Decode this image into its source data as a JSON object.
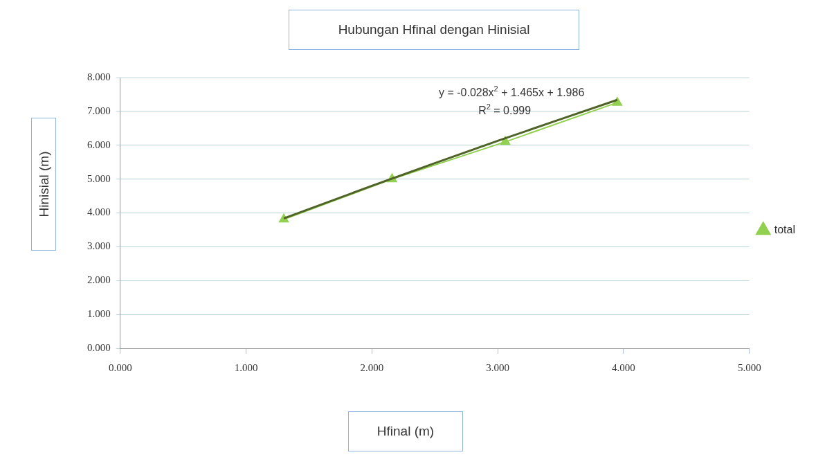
{
  "chart_data": {
    "type": "line",
    "title": "Hubungan Hfinal dengan Hinisial",
    "xlabel": "Hfinal (m)",
    "ylabel": "Hinisial (m)",
    "x": [
      1.3,
      2.16,
      3.06,
      3.95
    ],
    "series": [
      {
        "name": "total",
        "color": "#92d050",
        "values": [
          3.81,
          5.0,
          6.1,
          7.26
        ],
        "marker": "triangle"
      },
      {
        "type": "line",
        "color": "#4f6228",
        "x": [
          1.3,
          2.0,
          2.5,
          3.0,
          3.5,
          3.95
        ],
        "values": [
          3.84,
          4.8,
          5.47,
          6.13,
          6.77,
          7.34
        ],
        "marker": "none"
      }
    ],
    "xlim": [
      0,
      5
    ],
    "xticks": [
      {
        "value": 0,
        "label": "0.000"
      },
      {
        "value": 1,
        "label": "1.000"
      },
      {
        "value": 2,
        "label": "2.000"
      },
      {
        "value": 3,
        "label": "3.000"
      },
      {
        "value": 4,
        "label": "4.000"
      },
      {
        "value": 5,
        "label": "5.000"
      }
    ],
    "ylim": [
      0,
      8
    ],
    "yticks": [
      {
        "value": 0,
        "label": "0.000"
      },
      {
        "value": 1,
        "label": "1.000"
      },
      {
        "value": 2,
        "label": "2.000"
      },
      {
        "value": 3,
        "label": "3.000"
      },
      {
        "value": 4,
        "label": "4.000"
      },
      {
        "value": 5,
        "label": "5.000"
      },
      {
        "value": 6,
        "label": "6.000"
      },
      {
        "value": 7,
        "label": "7.000"
      },
      {
        "value": 8,
        "label": "8.000"
      }
    ],
    "grid": "y",
    "legend": "right",
    "annotations": [
      "y = -0.028x$^{2}$ + 1.465x + 1.986",
      "R$^{2}$ = 0.999"
    ]
  }
}
